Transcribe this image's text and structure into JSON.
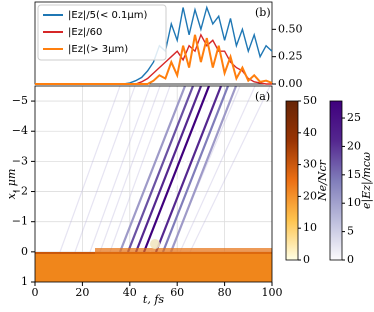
{
  "chart_data": [
    {
      "type": "line",
      "label": "(b)",
      "legend": "upper left",
      "x": [
        0,
        2.5,
        5,
        7.5,
        10,
        12.5,
        15,
        17.5,
        20,
        22.5,
        25,
        27.5,
        30,
        32.5,
        35,
        37.5,
        40,
        42.5,
        45,
        47.5,
        50,
        52.5,
        55,
        57.5,
        60,
        62.5,
        65,
        67.5,
        70,
        72.5,
        75,
        77.5,
        80,
        82.5,
        85,
        87.5,
        90,
        92.5,
        95,
        97.5,
        100
      ],
      "series": [
        {
          "name": "|Ez|/5(< 0.1μm)",
          "color": "#1f77b4",
          "values": [
            0,
            0,
            0,
            0,
            0,
            0,
            0,
            0,
            0,
            0,
            0,
            0,
            0,
            0,
            0,
            0,
            0.01,
            0.03,
            0.06,
            0.12,
            0.2,
            0.35,
            0.3,
            0.55,
            0.4,
            0.7,
            0.45,
            0.68,
            0.5,
            0.7,
            0.55,
            0.62,
            0.4,
            0.6,
            0.35,
            0.5,
            0.3,
            0.45,
            0.25,
            0.35,
            0.3
          ]
        },
        {
          "name": "|Ez|/60",
          "color": "#d62728",
          "values": [
            0,
            0,
            0,
            0,
            0,
            0,
            0,
            0,
            0,
            0,
            0,
            0,
            0,
            0,
            0,
            0,
            0,
            0,
            0.02,
            0.05,
            0.1,
            0.15,
            0.2,
            0.25,
            0.3,
            0.22,
            0.35,
            0.3,
            0.45,
            0.35,
            0.4,
            0.3,
            0.3,
            0.2,
            0.15,
            0.12,
            0.05,
            0.02,
            0.01,
            0,
            0
          ]
        },
        {
          "name": "|Ez|(> 3μm)",
          "color": "#ff7f0e",
          "values": [
            0,
            0,
            0,
            0,
            0,
            0,
            0,
            0,
            0,
            0,
            0,
            0,
            0,
            0,
            0,
            0,
            0,
            0,
            0,
            0,
            0.03,
            0.08,
            0.05,
            0.2,
            0.08,
            0.35,
            0.15,
            0.45,
            0.2,
            0.42,
            0.15,
            0.35,
            0.1,
            0.25,
            0.05,
            0.15,
            0.03,
            0.08,
            0.02,
            0.03,
            0.01
          ]
        }
      ],
      "xlim": [
        0,
        100
      ],
      "ylim": [
        0,
        0.75
      ],
      "yticks": [
        {
          "value": 0,
          "label": "0.00"
        },
        {
          "value": 0.25,
          "label": "0.25"
        },
        {
          "value": 0.5,
          "label": "0.50"
        }
      ]
    },
    {
      "type": "heatmap",
      "label": "(a)",
      "xlabel": "t,  fs",
      "ylabel": "x,  μm",
      "xlim": [
        0,
        100
      ],
      "ylim": [
        1,
        -5.5
      ],
      "xticks": [
        0,
        20,
        40,
        60,
        80,
        100
      ],
      "yticks": [
        {
          "value": -5,
          "label": "−5"
        },
        {
          "value": -4,
          "label": "−4"
        },
        {
          "value": -3,
          "label": "−3"
        },
        {
          "value": -2,
          "label": "−2"
        },
        {
          "value": -1,
          "label": "−1"
        },
        0,
        1
      ],
      "grid": true
    },
    {
      "type": "colorbar",
      "label": "Ne/Ncr",
      "lim": [
        0,
        50
      ],
      "ticks": [
        0,
        10,
        20,
        30,
        40,
        50
      ],
      "colors": [
        "#ffffe5",
        "#fec44f",
        "#ec7014",
        "#993404",
        "#662506"
      ]
    },
    {
      "type": "colorbar",
      "label": "e|Ez|/mcω",
      "lim": [
        0,
        28
      ],
      "ticks": [
        0,
        5,
        10,
        15,
        20,
        25
      ],
      "colors": [
        "#fcfbfd",
        "#bcbddc",
        "#807dba",
        "#54278f",
        "#3f007d"
      ]
    }
  ]
}
